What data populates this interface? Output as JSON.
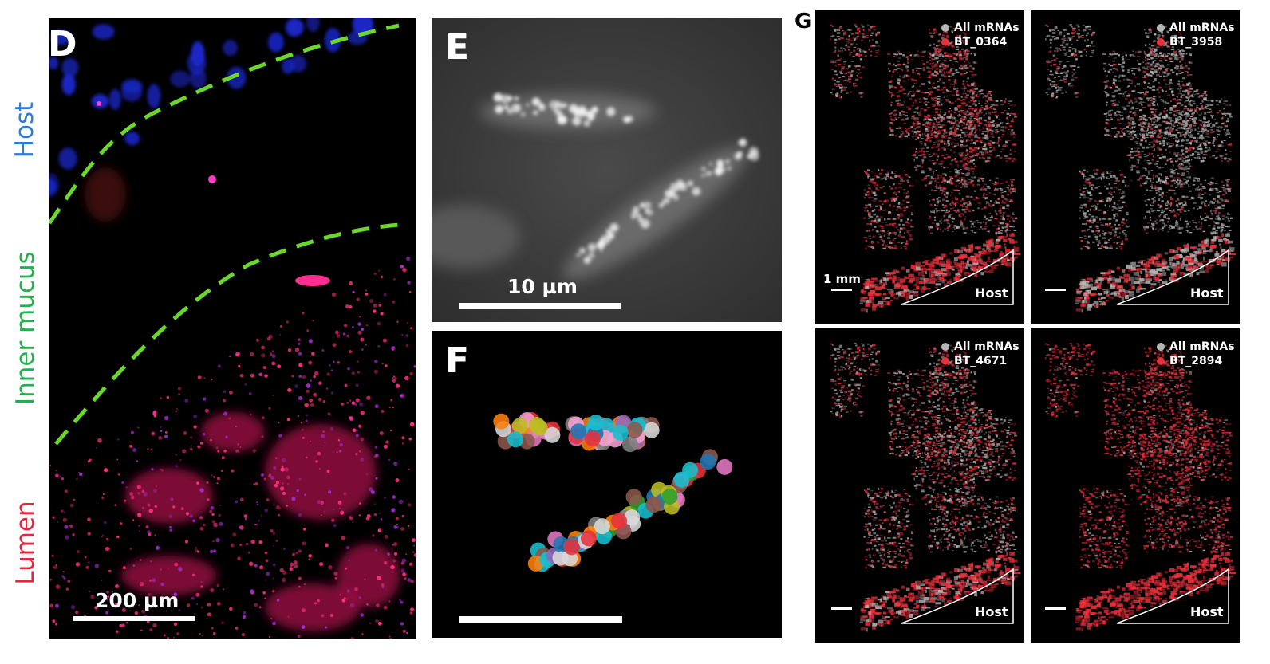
{
  "figure": {
    "panel_d": {
      "letter": "D",
      "labels": {
        "host": "Host",
        "inner_mucus": "Inner mucus",
        "lumen": "Lumen"
      },
      "scale_bar": "200 µm",
      "colors": {
        "host": "#2d7ae0",
        "mucus": "#22b24c",
        "lumen": "#e8243f",
        "boundary": "#6bd62c"
      }
    },
    "panel_e": {
      "letter": "E",
      "scale_bar": "10 µm"
    },
    "panel_f": {
      "letter": "F"
    },
    "panel_g": {
      "letter": "G",
      "scale_label": "1 mm",
      "host_label": "Host",
      "legend_all": "All mRNAs",
      "colors": {
        "all": "#b5b5b5",
        "gene": "#e8303a"
      },
      "subpanels": [
        {
          "gene": "BT_0364",
          "intensity": 0.55
        },
        {
          "gene": "BT_3958",
          "intensity": 0.2
        },
        {
          "gene": "BT_4671",
          "intensity": 0.5
        },
        {
          "gene": "BT_2894",
          "intensity": 0.85
        }
      ]
    }
  }
}
